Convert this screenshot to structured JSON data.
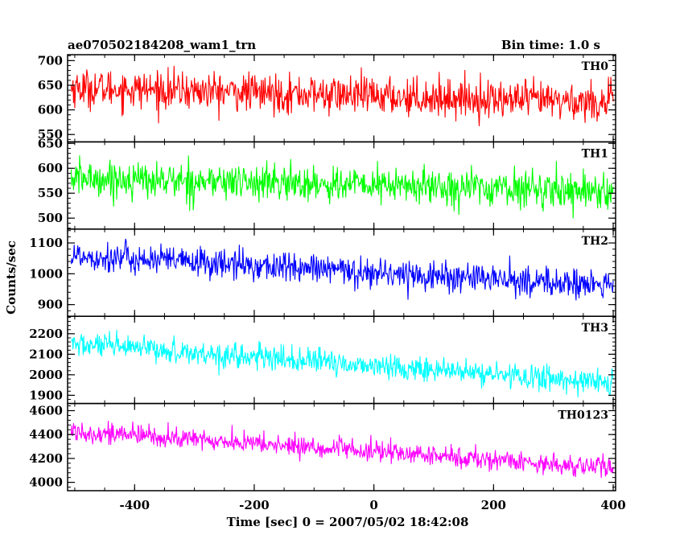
{
  "chart_data": {
    "type": "line",
    "title": "ae070502184208_wam1_trn",
    "subtitle": "Bin time: 1.0 s",
    "xlabel": "Time [sec] 0 = 2007/05/02 18:42:08",
    "ylabel": "Counts/sec",
    "xlim": [
      -512,
      404
    ],
    "x_ticks": [
      -400,
      -200,
      0,
      200,
      400
    ],
    "bin_time_s": 1.0,
    "panels": [
      {
        "name": "TH0",
        "color": "#ff0000",
        "ylim": [
          535,
          712
        ],
        "y_ticks": [
          550,
          600,
          650,
          700
        ],
        "trend_start": 645,
        "trend_end": 615,
        "noise": 35,
        "series_x_range": [
          -506,
          400
        ]
      },
      {
        "name": "TH1",
        "color": "#00ff00",
        "ylim": [
          478,
          653
        ],
        "y_ticks": [
          500,
          550,
          600,
          650
        ],
        "trend_start": 580,
        "trend_end": 555,
        "noise": 33,
        "series_x_range": [
          -506,
          400
        ]
      },
      {
        "name": "TH2",
        "color": "#0000ff",
        "ylim": [
          862,
          1145
        ],
        "y_ticks": [
          900,
          1000,
          1100
        ],
        "trend_start": 1060,
        "trend_end": 960,
        "noise": 45,
        "series_x_range": [
          -506,
          400
        ]
      },
      {
        "name": "TH3",
        "color": "#00ffff",
        "ylim": [
          1860,
          2285
        ],
        "y_ticks": [
          1900,
          2000,
          2100,
          2200
        ],
        "trend_start": 2150,
        "trend_end": 1960,
        "noise": 55,
        "series_x_range": [
          -506,
          400
        ]
      },
      {
        "name": "TH0123",
        "color": "#ff00ff",
        "ylim": [
          3930,
          4660
        ],
        "y_ticks": [
          4000,
          4200,
          4400,
          4600
        ],
        "trend_start": 4430,
        "trend_end": 4120,
        "noise": 80,
        "series_x_range": [
          -506,
          400
        ]
      }
    ]
  }
}
